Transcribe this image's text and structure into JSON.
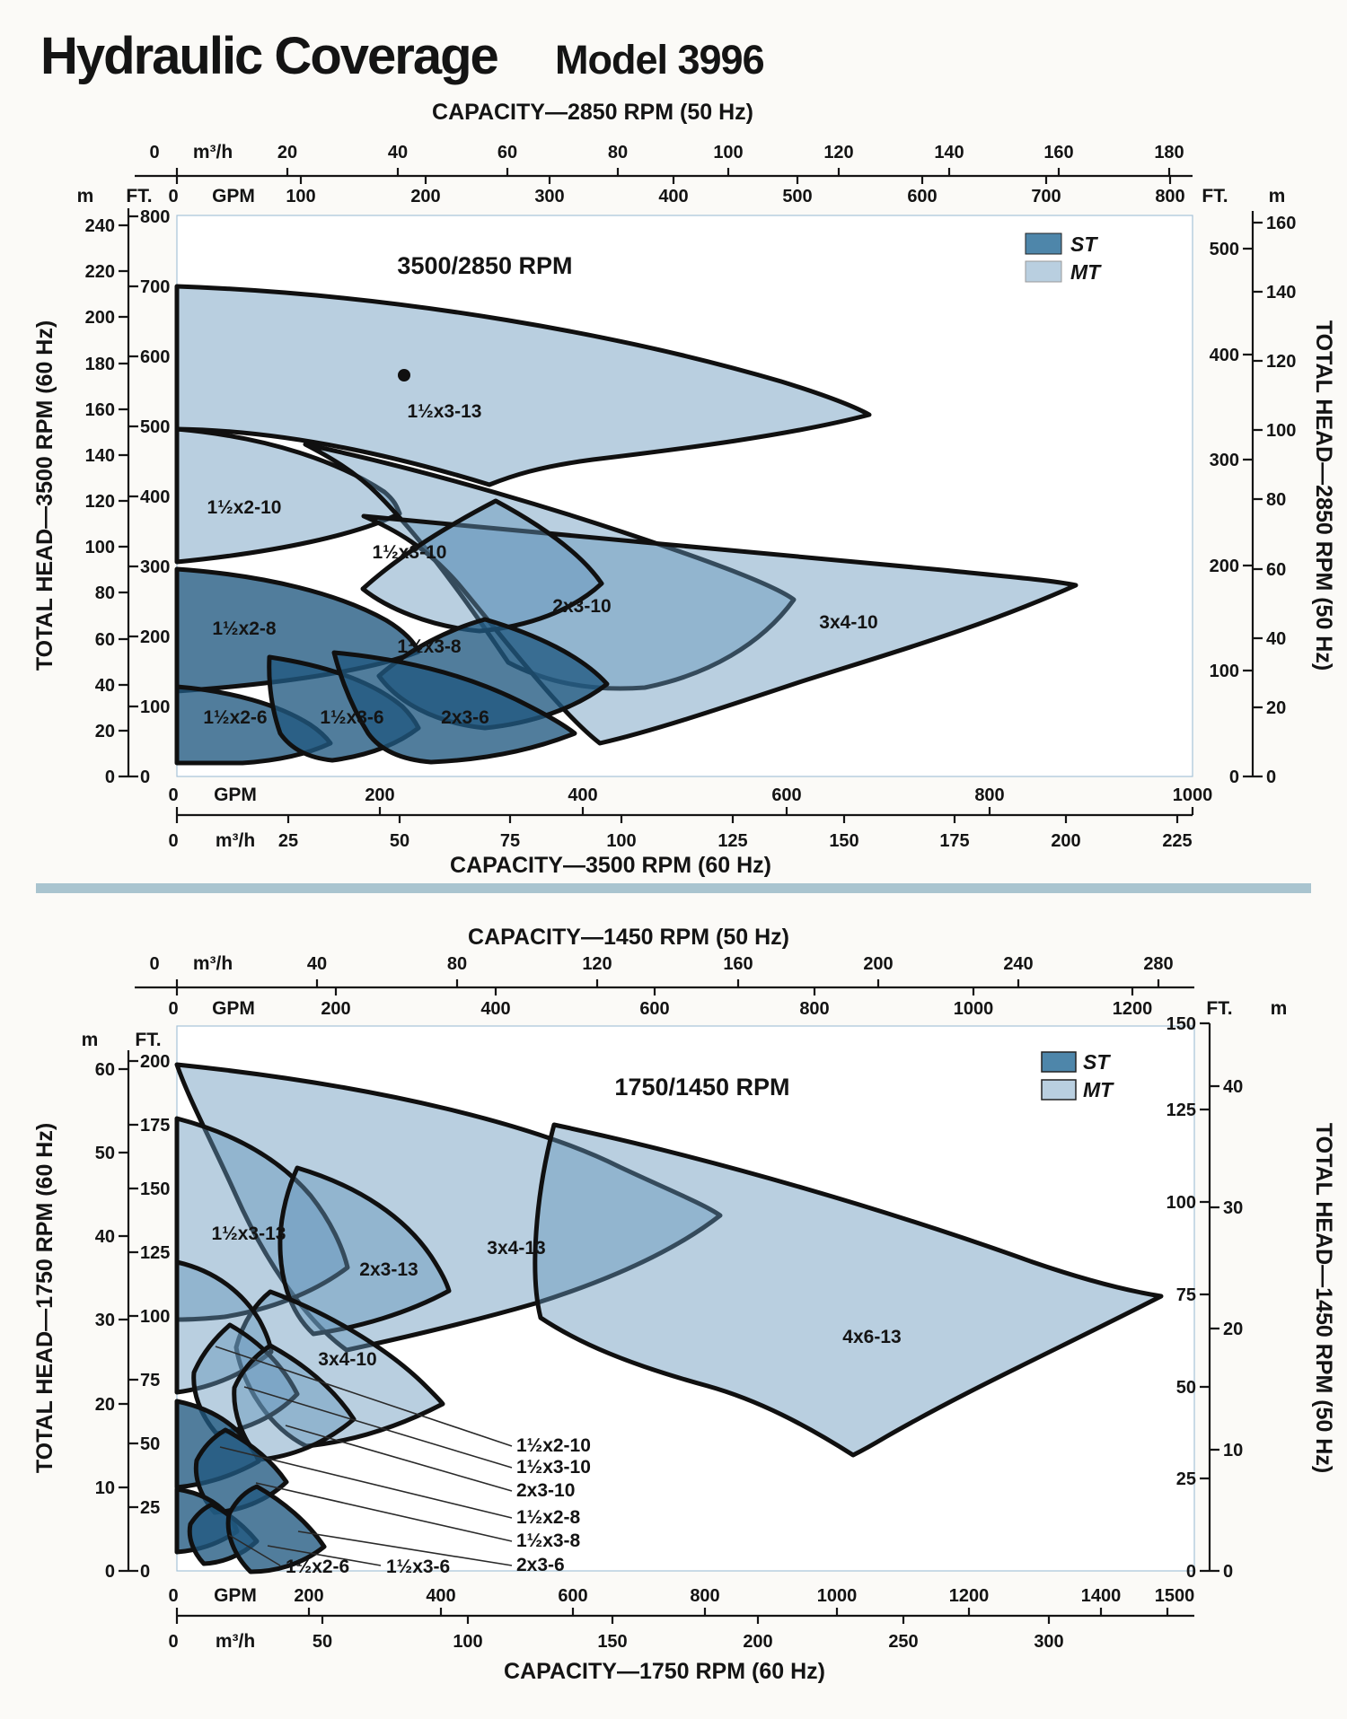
{
  "page": {
    "title": "Hydraulic Coverage",
    "model": "Model 3996",
    "title_color": "#17505f"
  },
  "colors": {
    "st": "#4e86aa",
    "mt": "#b9cfe0",
    "grid": "#a6c3d8",
    "divider": "#a9c4cf",
    "outline": "#101010"
  },
  "top_chart": {
    "rpm_label": "3500/2850 RPM",
    "cap_top_title": "CAPACITY—2850 RPM (50 Hz)",
    "cap_bottom_title": "CAPACITY—3500 RPM (60 Hz)",
    "head_left_title": "TOTAL HEAD—3500 RPM (60 Hz)",
    "head_right_title": "TOTAL HEAD—2850 RPM (50 Hz)",
    "units": {
      "m3h": "m³/h",
      "gpm": "GPM",
      "ft": "FT.",
      "m": "m"
    },
    "m3h_top": [
      "0",
      "20",
      "40",
      "60",
      "80",
      "100",
      "120",
      "140",
      "160",
      "180"
    ],
    "gpm_top": [
      "0",
      "100",
      "200",
      "300",
      "400",
      "500",
      "600",
      "700",
      "800"
    ],
    "gpm_bottom": [
      "0",
      "200",
      "400",
      "600",
      "800",
      "1000"
    ],
    "m3h_bottom": [
      "0",
      "25",
      "50",
      "75",
      "100",
      "125",
      "150",
      "175",
      "200",
      "225"
    ],
    "m_left": [
      "240",
      "220",
      "200",
      "180",
      "160",
      "140",
      "120",
      "100",
      "80",
      "60",
      "40",
      "20",
      "0"
    ],
    "ft_left": [
      "800",
      "700",
      "600",
      "500",
      "400",
      "300",
      "200",
      "100",
      "0"
    ],
    "ft_right": [
      "500",
      "400",
      "300",
      "200",
      "100",
      "0"
    ],
    "m_right": [
      "160",
      "140",
      "120",
      "100",
      "80",
      "60",
      "40",
      "20",
      "0"
    ],
    "legend": {
      "st": "ST",
      "mt": "MT"
    },
    "regions": [
      "1½x3-13",
      "1½x2-10",
      "1½x3-10",
      "2x3-10",
      "3x4-10",
      "1½x2-8",
      "1½x3-8",
      "1½x2-6",
      "1½x3-6",
      "2x3-6"
    ]
  },
  "bottom_chart": {
    "rpm_label": "1750/1450 RPM",
    "cap_top_title": "CAPACITY—1450 RPM (50 Hz)",
    "cap_bottom_title": "CAPACITY—1750 RPM (60 Hz)",
    "head_left_title": "TOTAL HEAD—1750 RPM (60 Hz)",
    "head_right_title": "TOTAL HEAD—1450 RPM (50 Hz)",
    "units": {
      "m3h": "m³/h",
      "gpm": "GPM",
      "ft": "FT.",
      "m": "m"
    },
    "m3h_top": [
      "0",
      "40",
      "80",
      "120",
      "160",
      "200",
      "240",
      "280"
    ],
    "gpm_top": [
      "0",
      "200",
      "400",
      "600",
      "800",
      "1000",
      "1200"
    ],
    "gpm_bottom": [
      "0",
      "200",
      "400",
      "600",
      "800",
      "1000",
      "1200",
      "1400",
      "1500"
    ],
    "m3h_bottom": [
      "0",
      "50",
      "100",
      "150",
      "200",
      "250",
      "300"
    ],
    "m_left": [
      "60",
      "50",
      "40",
      "30",
      "20",
      "10",
      "0"
    ],
    "ft_left": [
      "200",
      "175",
      "150",
      "125",
      "100",
      "75",
      "50",
      "25",
      "0"
    ],
    "ft_right": [
      "150",
      "125",
      "100",
      "75",
      "50",
      "25",
      "0"
    ],
    "m_right": [
      "40",
      "30",
      "20",
      "10",
      "0"
    ],
    "legend": {
      "st": "ST",
      "mt": "MT"
    },
    "regions": [
      "3x4-13",
      "1½x3-13",
      "2x3-13",
      "4x6-13",
      "3x4-10"
    ],
    "callouts": [
      "1½x2-10",
      "1½x3-10",
      "2x3-10",
      "1½x2-8",
      "1½x3-8",
      "2x3-6"
    ],
    "inline_callouts": [
      "1½x2-6",
      "1½x3-6"
    ]
  },
  "chart_data": [
    {
      "type": "area",
      "title": "3500/2850 RPM hydraulic coverage",
      "xlabel_bottom": "CAPACITY—3500 RPM (60 Hz)",
      "xlabel_top": "CAPACITY—2850 RPM (50 Hz)",
      "ylabel_left": "TOTAL HEAD—3500 RPM (60 Hz)",
      "ylabel_right": "TOTAL HEAD—2850 RPM (50 Hz)",
      "x_axis_gpm_3500": [
        0,
        200,
        400,
        600,
        800,
        1000
      ],
      "x_axis_m3h_3500": [
        0,
        25,
        50,
        75,
        100,
        125,
        150,
        175,
        200,
        225
      ],
      "x_axis_gpm_2850": [
        0,
        100,
        200,
        300,
        400,
        500,
        600,
        700,
        800
      ],
      "x_axis_m3h_2850": [
        0,
        20,
        40,
        60,
        80,
        100,
        120,
        140,
        160,
        180
      ],
      "y_axis_ft_3500": [
        0,
        100,
        200,
        300,
        400,
        500,
        600,
        700,
        800
      ],
      "y_axis_m_3500": [
        0,
        20,
        40,
        60,
        80,
        100,
        120,
        140,
        160,
        180,
        200,
        220,
        240
      ],
      "y_axis_ft_2850": [
        0,
        100,
        200,
        300,
        400,
        500
      ],
      "y_axis_m_2850": [
        0,
        20,
        40,
        60,
        80,
        100,
        120,
        140,
        160
      ],
      "grid": true,
      "legend_position": "top-right",
      "legend": [
        "ST",
        "MT"
      ],
      "regions": [
        {
          "name": "1½x3-13",
          "family": "MT",
          "flow_gpm_3500": [
            0,
            680
          ],
          "head_ft_3500": [
            415,
            700
          ]
        },
        {
          "name": "1½x2-10",
          "family": "MT",
          "flow_gpm_3500": [
            0,
            230
          ],
          "head_ft_3500": [
            305,
            495
          ]
        },
        {
          "name": "1½x3-10",
          "family": "MT",
          "flow_gpm_3500": [
            185,
            420
          ],
          "head_ft_3500": [
            205,
            390
          ]
        },
        {
          "name": "2x3-10",
          "family": "MT",
          "flow_gpm_3500": [
            130,
            610
          ],
          "head_ft_3500": [
            125,
            475
          ]
        },
        {
          "name": "3x4-10",
          "family": "MT",
          "flow_gpm_3500": [
            185,
            885
          ],
          "head_ft_3500": [
            45,
            370
          ]
        },
        {
          "name": "1½x2-8",
          "family": "ST",
          "flow_gpm_3500": [
            0,
            240
          ],
          "head_ft_3500": [
            120,
            295
          ]
        },
        {
          "name": "1½x3-8",
          "family": "ST",
          "flow_gpm_3500": [
            200,
            425
          ],
          "head_ft_3500": [
            70,
            225
          ]
        },
        {
          "name": "1½x2-6",
          "family": "ST",
          "flow_gpm_3500": [
            0,
            150
          ],
          "head_ft_3500": [
            20,
            125
          ]
        },
        {
          "name": "1½x3-6",
          "family": "ST",
          "flow_gpm_3500": [
            90,
            240
          ],
          "head_ft_3500": [
            30,
            170
          ]
        },
        {
          "name": "2x3-6",
          "family": "ST",
          "flow_gpm_3500": [
            150,
            395
          ],
          "head_ft_3500": [
            60,
            180
          ]
        }
      ],
      "annotations": [
        {
          "type": "dot-marker",
          "label": "1½x3-13",
          "gpm_3500": 224,
          "ft_3500": 567
        }
      ]
    },
    {
      "type": "area",
      "title": "1750/1450 RPM hydraulic coverage",
      "xlabel_bottom": "CAPACITY—1750 RPM (60 Hz)",
      "xlabel_top": "CAPACITY—1450 RPM (50 Hz)",
      "ylabel_left": "TOTAL HEAD—1750 RPM (60 Hz)",
      "ylabel_right": "TOTAL HEAD—1450 RPM (50 Hz)",
      "x_axis_gpm_1750": [
        0,
        200,
        400,
        600,
        800,
        1000,
        1200,
        1400,
        1500
      ],
      "x_axis_m3h_1750": [
        0,
        50,
        100,
        150,
        200,
        250,
        300
      ],
      "x_axis_gpm_1450": [
        0,
        200,
        400,
        600,
        800,
        1000,
        1200
      ],
      "x_axis_m3h_1450": [
        0,
        40,
        80,
        120,
        160,
        200,
        240,
        280
      ],
      "y_axis_ft_1750": [
        0,
        25,
        50,
        75,
        100,
        125,
        150,
        175,
        200
      ],
      "y_axis_m_1750": [
        0,
        10,
        20,
        30,
        40,
        50,
        60
      ],
      "y_axis_ft_1450": [
        0,
        25,
        50,
        75,
        100,
        125,
        150
      ],
      "y_axis_m_1450": [
        0,
        10,
        20,
        30,
        40
      ],
      "grid": true,
      "legend_position": "top-right",
      "legend": [
        "ST",
        "MT"
      ],
      "regions": [
        {
          "name": "3x4-13",
          "family": "MT",
          "flow_gpm_1750": [
            0,
            825
          ],
          "head_ft_1750": [
            87,
            199
          ]
        },
        {
          "name": "1½x3-13",
          "family": "MT",
          "flow_gpm_1750": [
            0,
            260
          ],
          "head_ft_1750": [
            99,
            178
          ]
        },
        {
          "name": "2x3-13",
          "family": "MT",
          "flow_gpm_1750": [
            155,
            410
          ],
          "head_ft_1750": [
            93,
            158
          ]
        },
        {
          "name": "4x6-13",
          "family": "MT",
          "flow_gpm_1750": [
            550,
            1495
          ],
          "head_ft_1750": [
            46,
            180
          ]
        },
        {
          "name": "3x4-10",
          "family": "MT",
          "flow_gpm_1750": [
            90,
            400
          ],
          "head_ft_1750": [
            49,
            110
          ]
        },
        {
          "name": "1½x2-10",
          "family": "MT",
          "flow_gpm_1750": [
            0,
            140
          ],
          "head_ft_1750": [
            70,
            121
          ]
        },
        {
          "name": "1½x3-10",
          "family": "MT",
          "flow_gpm_1750": [
            22,
            180
          ],
          "head_ft_1750": [
            54,
            97
          ]
        },
        {
          "name": "2x3-10",
          "family": "MT",
          "flow_gpm_1750": [
            80,
            265
          ],
          "head_ft_1750": [
            44,
            89
          ]
        },
        {
          "name": "1½x2-8",
          "family": "ST",
          "flow_gpm_1750": [
            0,
            122
          ],
          "head_ft_1750": [
            33,
            67
          ]
        },
        {
          "name": "1½x3-8",
          "family": "ST",
          "flow_gpm_1750": [
            24,
            165
          ],
          "head_ft_1750": [
            23,
            56
          ]
        },
        {
          "name": "1½x2-6",
          "family": "ST",
          "flow_gpm_1750": [
            0,
            90
          ],
          "head_ft_1750": [
            8,
            32
          ]
        },
        {
          "name": "1½x3-6",
          "family": "ST",
          "flow_gpm_1750": [
            15,
            120
          ],
          "head_ft_1750": [
            3,
            26
          ]
        },
        {
          "name": "2x3-6",
          "family": "ST",
          "flow_gpm_1750": [
            65,
            220
          ],
          "head_ft_1750": [
            0,
            33
          ]
        }
      ]
    }
  ]
}
